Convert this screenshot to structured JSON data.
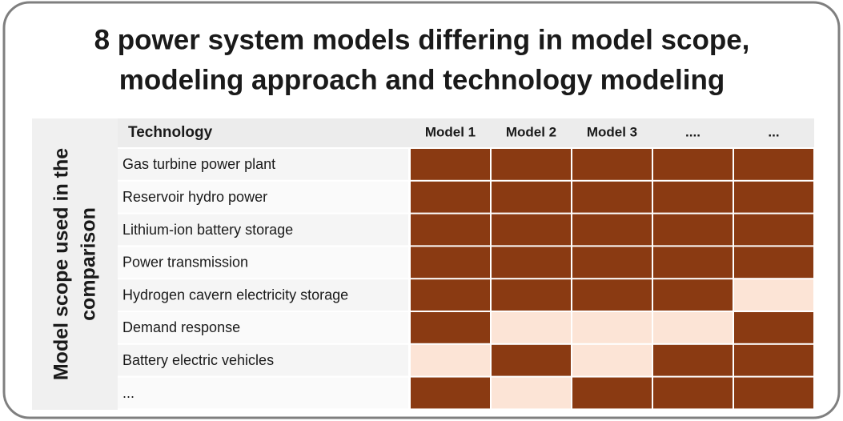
{
  "title": [
    "8 power system models differing in model scope,",
    "modeling approach and technology modeling"
  ],
  "side_label": [
    "Model scope used in the",
    "comparison"
  ],
  "table": {
    "header": [
      "Technology",
      "Model 1",
      "Model 2",
      "Model 3",
      "....",
      "..."
    ],
    "included_color": "#8a3a12",
    "excluded_color": "#fce4d6",
    "rows": [
      {
        "name": "Gas turbine power plant",
        "included": [
          true,
          true,
          true,
          true,
          true
        ]
      },
      {
        "name": "Reservoir hydro power",
        "included": [
          true,
          true,
          true,
          true,
          true
        ]
      },
      {
        "name": "Lithium-ion battery storage",
        "included": [
          true,
          true,
          true,
          true,
          true
        ]
      },
      {
        "name": "Power transmission",
        "included": [
          true,
          true,
          true,
          true,
          true
        ]
      },
      {
        "name": "Hydrogen cavern electricity storage",
        "included": [
          true,
          true,
          true,
          true,
          false
        ]
      },
      {
        "name": "Demand response",
        "included": [
          true,
          false,
          false,
          false,
          true
        ]
      },
      {
        "name": "Battery electric vehicles",
        "included": [
          false,
          true,
          false,
          true,
          true
        ]
      },
      {
        "name": "...",
        "included": [
          true,
          false,
          true,
          true,
          true
        ]
      }
    ]
  }
}
